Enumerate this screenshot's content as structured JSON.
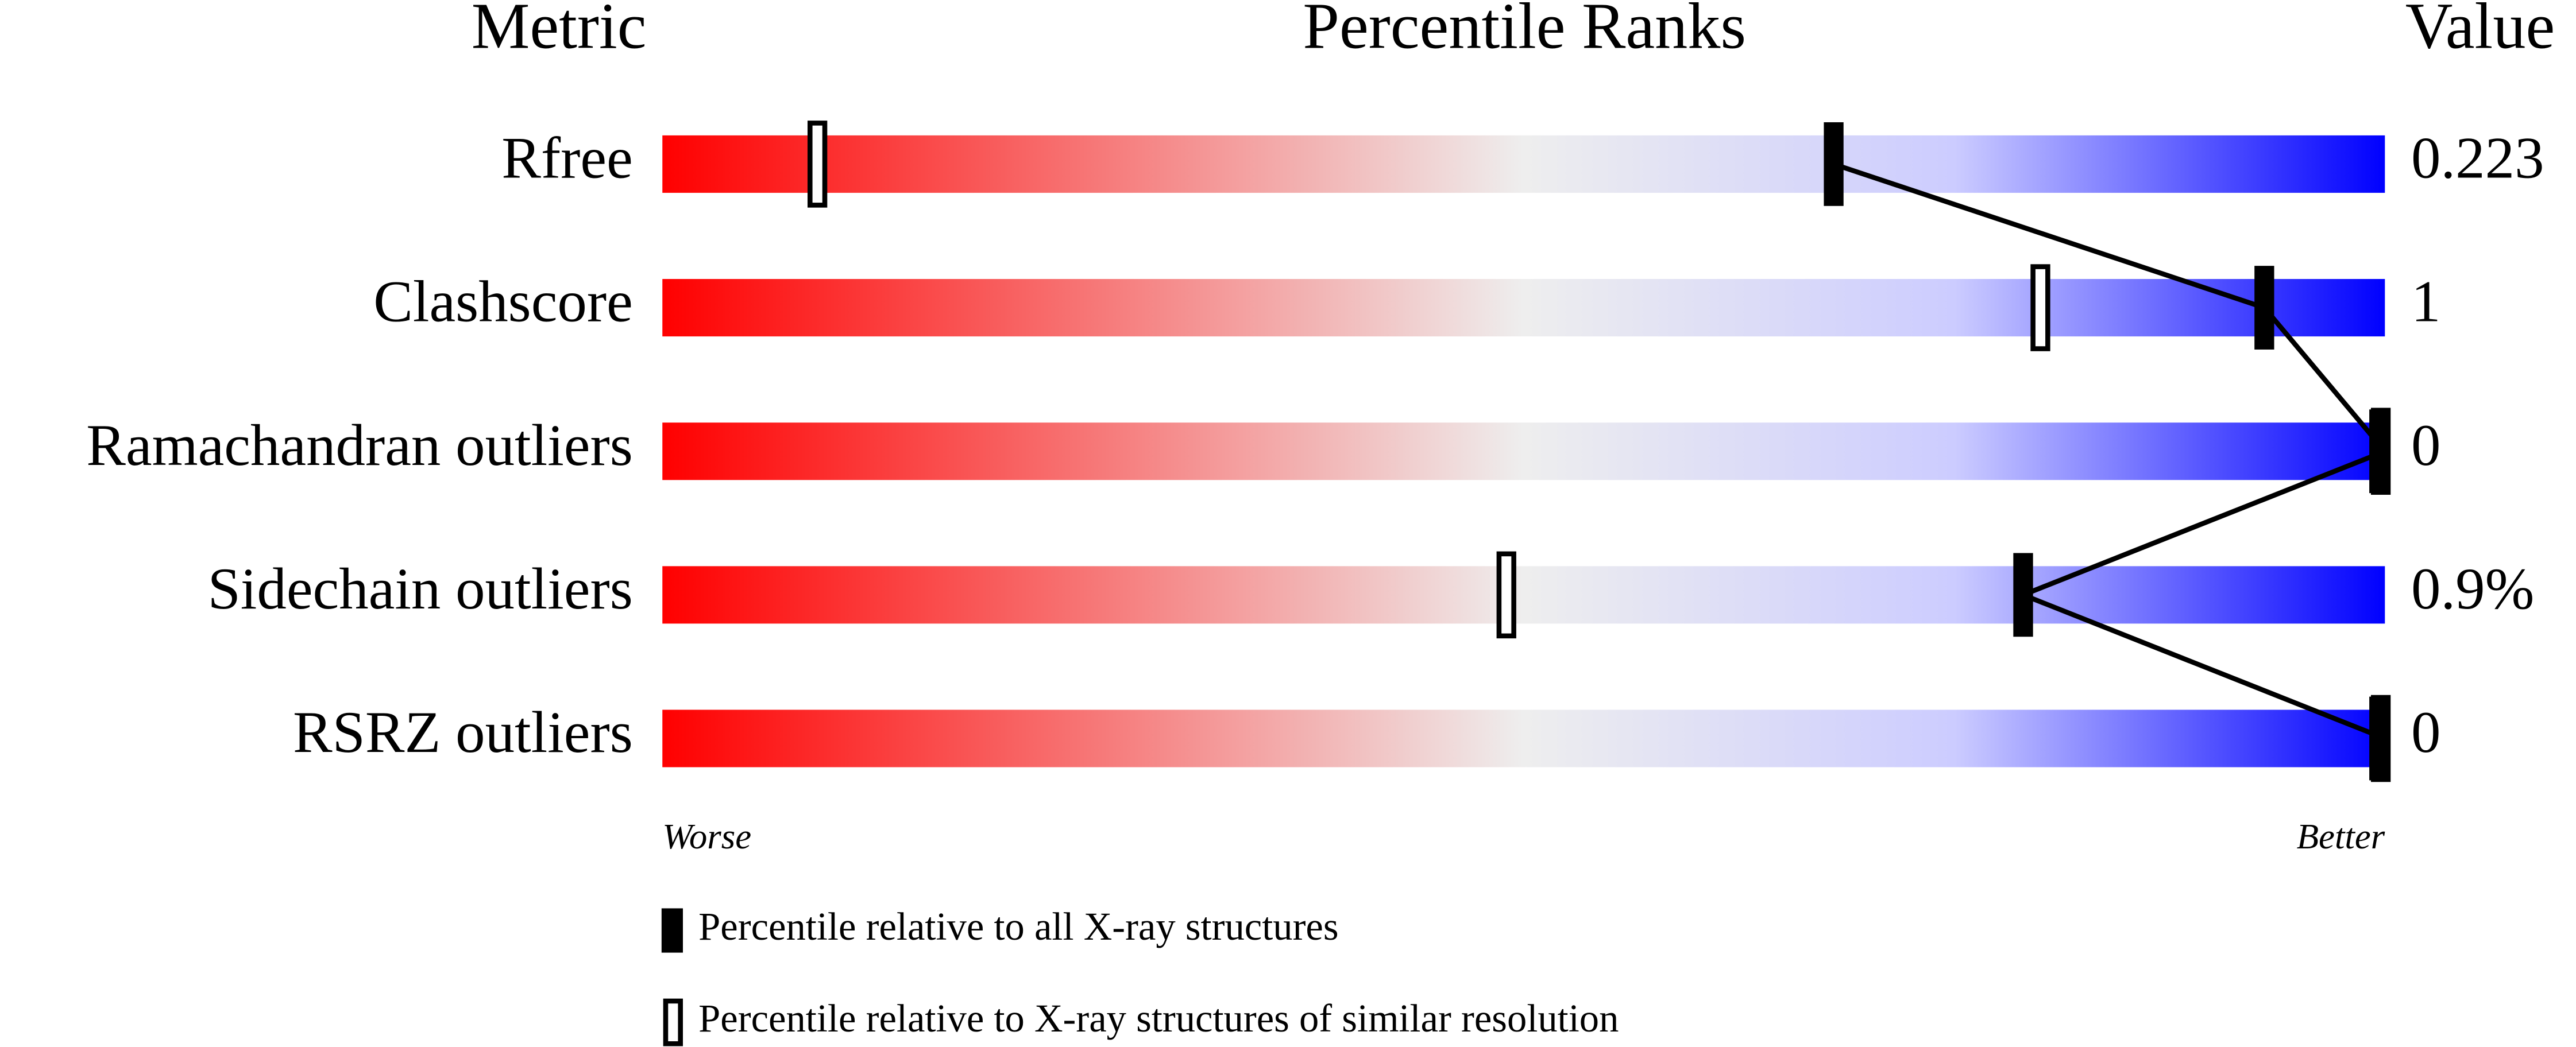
{
  "chart_data": {
    "type": "percentile",
    "column_headers": [
      "Metric",
      "Percentile Ranks",
      "Value"
    ],
    "categories": [
      "Rfree",
      "Clashscore",
      "Ramachandran outliers",
      "Sidechain outliers",
      "RSRZ outliers"
    ],
    "value_column": [
      "0.223",
      "1",
      "0",
      "0.9%",
      "0"
    ],
    "series": [
      {
        "name": "Percentile relative to all X-ray structures",
        "color": "#000000",
        "values": [
          68,
          93,
          100,
          79,
          100
        ]
      },
      {
        "name": "Percentile relative to X-ray structures of similar resolution",
        "color": "#ffffff",
        "values": [
          9,
          80,
          100,
          49,
          100
        ]
      }
    ],
    "xlim": [
      0,
      100
    ],
    "x_axis_labels": [
      "Worse",
      "Better"
    ],
    "gradient_colors": [
      "#ff0000",
      "#eeeeee",
      "#ccccff",
      "#0000ff"
    ]
  }
}
